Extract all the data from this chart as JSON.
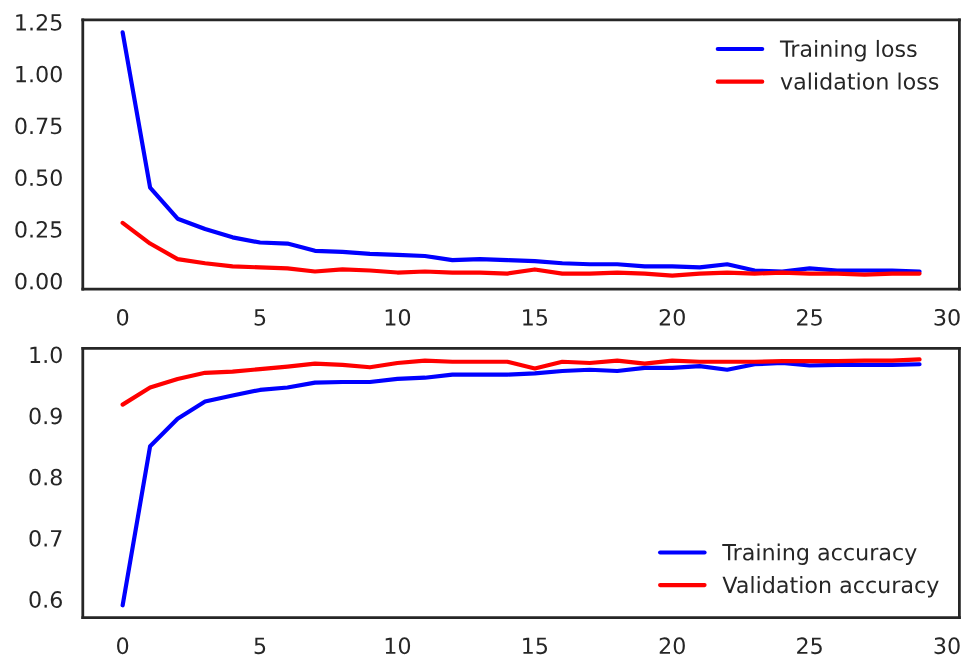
{
  "chart_data": [
    {
      "type": "line",
      "x": [
        0,
        1,
        2,
        3,
        4,
        5,
        6,
        7,
        8,
        9,
        10,
        11,
        12,
        13,
        14,
        15,
        16,
        17,
        18,
        19,
        20,
        21,
        22,
        23,
        24,
        25,
        26,
        27,
        28,
        29
      ],
      "series": [
        {
          "name": "Training loss",
          "color": "#0000ff",
          "values": [
            1.2,
            0.45,
            0.3,
            0.25,
            0.21,
            0.185,
            0.18,
            0.145,
            0.14,
            0.13,
            0.125,
            0.12,
            0.1,
            0.105,
            0.1,
            0.095,
            0.085,
            0.08,
            0.08,
            0.07,
            0.07,
            0.065,
            0.08,
            0.05,
            0.045,
            0.06,
            0.05,
            0.05,
            0.05,
            0.045
          ]
        },
        {
          "name": "validation loss",
          "color": "#ff0000",
          "values": [
            0.28,
            0.18,
            0.105,
            0.085,
            0.07,
            0.065,
            0.06,
            0.045,
            0.055,
            0.05,
            0.04,
            0.045,
            0.04,
            0.04,
            0.035,
            0.055,
            0.035,
            0.035,
            0.04,
            0.035,
            0.025,
            0.035,
            0.04,
            0.035,
            0.04,
            0.035,
            0.035,
            0.03,
            0.035,
            0.035
          ]
        }
      ],
      "xlim": [
        -1.45,
        30.45
      ],
      "xticks": [
        0,
        5,
        10,
        15,
        20,
        25,
        30
      ],
      "ylim": [
        -0.04,
        1.26
      ],
      "yticks": [
        {
          "value": 0,
          "label": "0.00"
        },
        {
          "value": 0.25,
          "label": "0.25"
        },
        {
          "value": 0.5,
          "label": "0.50"
        },
        {
          "value": 0.75,
          "label": "0.75"
        },
        {
          "value": 1.0,
          "label": "1.00"
        },
        {
          "value": 1.25,
          "label": "1.25"
        }
      ],
      "grid": false,
      "legend": "top right"
    },
    {
      "type": "line",
      "x": [
        0,
        1,
        2,
        3,
        4,
        5,
        6,
        7,
        8,
        9,
        10,
        11,
        12,
        13,
        14,
        15,
        16,
        17,
        18,
        19,
        20,
        21,
        22,
        23,
        24,
        25,
        26,
        27,
        28,
        29
      ],
      "series": [
        {
          "name": "Training accuracy",
          "color": "#0000ff",
          "values": [
            0.59,
            0.85,
            0.895,
            0.923,
            0.933,
            0.942,
            0.946,
            0.954,
            0.955,
            0.955,
            0.96,
            0.962,
            0.967,
            0.967,
            0.967,
            0.969,
            0.973,
            0.975,
            0.973,
            0.978,
            0.978,
            0.981,
            0.975,
            0.984,
            0.986,
            0.982,
            0.983,
            0.983,
            0.983,
            0.984
          ]
        },
        {
          "name": "Validation accuracy",
          "color": "#ff0000",
          "values": [
            0.918,
            0.946,
            0.96,
            0.97,
            0.972,
            0.976,
            0.98,
            0.985,
            0.983,
            0.979,
            0.986,
            0.99,
            0.988,
            0.988,
            0.988,
            0.977,
            0.988,
            0.986,
            0.99,
            0.985,
            0.99,
            0.988,
            0.988,
            0.988,
            0.989,
            0.989,
            0.989,
            0.99,
            0.99,
            0.992
          ]
        }
      ],
      "xlim": [
        -1.45,
        30.45
      ],
      "xticks": [
        0,
        5,
        10,
        15,
        20,
        25,
        30
      ],
      "ylim": [
        0.57,
        1.01
      ],
      "yticks": [
        {
          "value": 0.6,
          "label": "0.6"
        },
        {
          "value": 0.7,
          "label": "0.7"
        },
        {
          "value": 0.8,
          "label": "0.8"
        },
        {
          "value": 0.9,
          "label": "0.9"
        },
        {
          "value": 1.0,
          "label": "1.0"
        }
      ],
      "grid": false,
      "legend": "bottom right"
    }
  ]
}
